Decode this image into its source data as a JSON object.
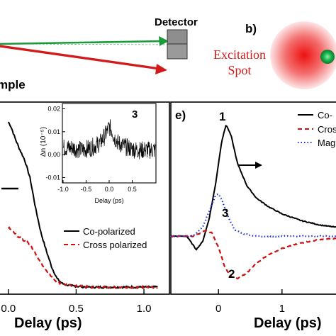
{
  "schematic": {
    "detector_label": "Detector",
    "sample_label": "mple",
    "panel_b_label": "b)",
    "excitation_label_line1": "Excitation",
    "excitation_label_line2": "Spot"
  },
  "chart_data": [
    {
      "type": "line",
      "panel": "d",
      "xlabel": "Delay (ps)",
      "ylabel": "",
      "xlim": [
        -0.02,
        1.12
      ],
      "xtick_labels": [
        "0.0",
        "0.5",
        "1.0"
      ],
      "xtick_values": [
        0.0,
        0.5,
        1.0
      ],
      "legend_placement": "bottom-right",
      "series": [
        {
          "name": "Co-polarized",
          "style": "solid",
          "color": "#000000",
          "x": [
            0.0,
            0.02,
            0.05,
            0.08,
            0.12,
            0.16,
            0.2,
            0.24,
            0.28,
            0.32,
            0.36,
            0.4,
            0.45,
            0.5,
            0.6,
            0.7,
            0.8,
            0.9,
            1.0,
            1.1
          ],
          "y": [
            1.0,
            0.97,
            0.9,
            0.84,
            0.77,
            0.66,
            0.48,
            0.33,
            0.22,
            0.12,
            0.05,
            0.02,
            0.01,
            0.005,
            0.0,
            0.0,
            0.0,
            0.0,
            0.0,
            0.0
          ]
        },
        {
          "name": "Cross polarized",
          "style": "dashed",
          "color": "#cc1111",
          "x": [
            0.0,
            0.04,
            0.08,
            0.12,
            0.16,
            0.2,
            0.24,
            0.28,
            0.32,
            0.36,
            0.4,
            0.45,
            0.5,
            0.6,
            0.7,
            0.8,
            0.9,
            1.0,
            1.1
          ],
          "y": [
            0.36,
            0.33,
            0.3,
            0.28,
            0.26,
            0.2,
            0.15,
            0.1,
            0.06,
            0.03,
            0.02,
            0.01,
            0.005,
            0.0,
            0.0,
            0.0,
            0.0,
            0.0,
            0.0
          ]
        }
      ]
    },
    {
      "type": "line",
      "panel": "d-inset",
      "label": "3",
      "xlabel": "Delay (ps)",
      "ylabel": "Δn (10⁻⁵)",
      "xlim": [
        -1.0,
        1.0
      ],
      "ylim": [
        -0.012,
        0.022
      ],
      "xtick_labels": [
        "-1.0",
        "-0.5",
        "0.0",
        "0.5"
      ],
      "xtick_values": [
        -1.0,
        -0.5,
        0.0,
        0.5
      ],
      "ytick_labels": [
        "0.02",
        "0.01",
        "0.00",
        "-0.01"
      ],
      "ytick_values": [
        0.02,
        0.01,
        0.0,
        -0.01
      ],
      "series": [
        {
          "style": "solid",
          "color": "#000000",
          "x": [
            -1.0,
            -0.8,
            -0.6,
            -0.4,
            -0.2,
            -0.1,
            0.0,
            0.05,
            0.1,
            0.2,
            0.4,
            0.6,
            0.8,
            1.0
          ],
          "y": [
            0.003,
            0.003,
            0.002,
            0.003,
            0.005,
            0.008,
            0.012,
            0.011,
            0.008,
            0.005,
            0.003,
            0.002,
            0.002,
            0.002
          ],
          "noise": 0.004
        }
      ]
    },
    {
      "type": "line",
      "panel": "e",
      "label": "e)",
      "xlabel": "Delay (ps)",
      "xlim": [
        -0.75,
        1.85
      ],
      "xtick_labels": [
        "0",
        "1"
      ],
      "xtick_values": [
        0,
        1
      ],
      "legend_placement": "top-right",
      "annotations": [
        "1",
        "2",
        "3"
      ],
      "series": [
        {
          "name": "Co-",
          "style": "solid",
          "color": "#000000",
          "x": [
            -0.75,
            -0.5,
            -0.35,
            -0.25,
            -0.15,
            -0.05,
            0.05,
            0.12,
            0.2,
            0.3,
            0.45,
            0.6,
            0.8,
            1.0,
            1.3,
            1.6,
            1.85
          ],
          "y": [
            0.0,
            0.0,
            -0.12,
            -0.05,
            0.15,
            0.45,
            0.85,
            1.0,
            0.9,
            0.65,
            0.45,
            0.34,
            0.26,
            0.2,
            0.14,
            0.1,
            0.08
          ]
        },
        {
          "name": "Cros",
          "style": "dashed",
          "color": "#cc1111",
          "x": [
            -0.75,
            -0.4,
            -0.2,
            -0.1,
            0.0,
            0.1,
            0.2,
            0.3,
            0.45,
            0.6,
            0.8,
            1.0,
            1.3,
            1.6,
            1.85
          ],
          "y": [
            0.0,
            0.0,
            0.05,
            0.03,
            -0.1,
            -0.28,
            -0.36,
            -0.38,
            -0.33,
            -0.24,
            -0.16,
            -0.11,
            -0.06,
            -0.03,
            -0.02
          ]
        },
        {
          "name": "Mag",
          "style": "dotted",
          "color": "#1a2fd6",
          "x": [
            -0.75,
            -0.4,
            -0.25,
            -0.15,
            -0.05,
            0.0,
            0.05,
            0.15,
            0.25,
            0.4,
            0.6,
            1.0,
            1.4,
            1.85
          ],
          "y": [
            0.0,
            0.0,
            0.08,
            0.22,
            0.36,
            0.38,
            0.33,
            0.18,
            0.06,
            0.02,
            0.0,
            0.0,
            0.0,
            0.0
          ]
        }
      ]
    }
  ],
  "legend_d": {
    "co_label": "Co-polarized",
    "cross_label": "Cross polarized"
  },
  "legend_e": {
    "co_label": "Co-",
    "cross_label": "Cros",
    "mag_label": "Mag"
  },
  "colors": {
    "green_beam": "#1a9a3a",
    "red_beam": "#d21a1a",
    "excitation_text": "#d21a1a"
  }
}
